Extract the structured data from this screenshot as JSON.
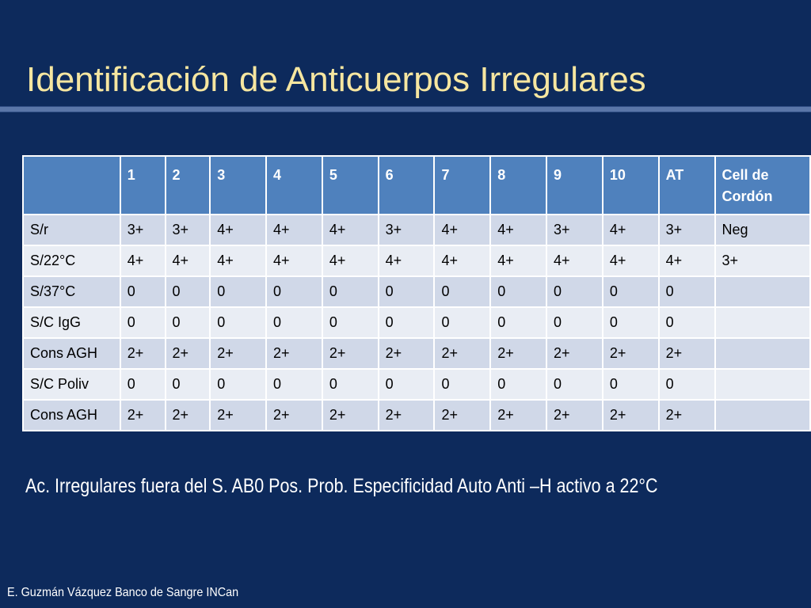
{
  "slide": {
    "title": "Identificación de Anticuerpos Irregulares",
    "note": "Ac. Irregulares fuera del S. AB0 Pos. Prob. Especificidad Auto Anti –H activo a 22°C",
    "footer": "E. Guzmán Vázquez  Banco de Sangre INCan"
  },
  "table": {
    "headers": [
      "",
      "1",
      "2",
      "3",
      "4",
      "5",
      "6",
      "7",
      "8",
      "9",
      "10",
      "AT",
      "Cell de Cordón"
    ],
    "rows": [
      {
        "label": "S/r",
        "cells": [
          "3+",
          "3+",
          "4+",
          "4+",
          "4+",
          "3+",
          "4+",
          "4+",
          "3+",
          "4+",
          "3+",
          "Neg"
        ]
      },
      {
        "label": "S/22°C",
        "cells": [
          "4+",
          "4+",
          "4+",
          "4+",
          "4+",
          "4+",
          "4+",
          "4+",
          "4+",
          "4+",
          "4+",
          "3+"
        ]
      },
      {
        "label": "S/37°C",
        "cells": [
          "0",
          "0",
          "0",
          "0",
          "0",
          "0",
          "0",
          "0",
          "0",
          "0",
          "0",
          ""
        ]
      },
      {
        "label": "S/C IgG",
        "cells": [
          "0",
          "0",
          "0",
          "0",
          "0",
          "0",
          "0",
          "0",
          "0",
          "0",
          "0",
          ""
        ]
      },
      {
        "label": "Cons AGH",
        "cells": [
          "2+",
          "2+",
          "2+",
          "2+",
          "2+",
          "2+",
          "2+",
          "2+",
          "2+",
          "2+",
          "2+",
          ""
        ]
      },
      {
        "label": "S/C Poliv",
        "cells": [
          "0",
          "0",
          "0",
          "0",
          "0",
          "0",
          "0",
          "0",
          "0",
          "0",
          "0",
          ""
        ]
      },
      {
        "label": "Cons AGH",
        "cells": [
          "2+",
          "2+",
          "2+",
          "2+",
          "2+",
          "2+",
          "2+",
          "2+",
          "2+",
          "2+",
          "2+",
          ""
        ]
      }
    ]
  },
  "colors": {
    "background": "#0d2a5c",
    "title": "#f6e6a0",
    "header_fill": "#4f81bd",
    "row_fill_odd": "#d0d8e8",
    "row_fill_even": "#e9edf4"
  }
}
